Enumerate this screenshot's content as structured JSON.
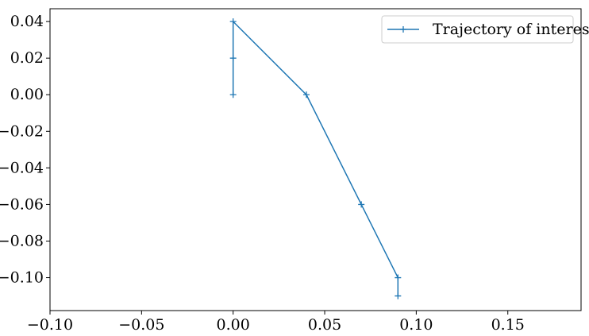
{
  "chart_data": {
    "type": "line",
    "title": "",
    "xlabel": "",
    "ylabel": "",
    "xlim": [
      -0.1,
      0.19
    ],
    "ylim": [
      -0.118,
      0.047
    ],
    "x_ticks": [
      -0.1,
      -0.05,
      0.0,
      0.05,
      0.1,
      0.15
    ],
    "x_tick_labels": [
      "−0.10",
      "−0.05",
      "0.00",
      "0.05",
      "0.10",
      "0.15"
    ],
    "y_ticks": [
      0.04,
      0.02,
      0.0,
      -0.02,
      -0.04,
      -0.06,
      -0.08,
      -0.1
    ],
    "y_tick_labels": [
      "0.04",
      "0.02",
      "0.00",
      "−0.02",
      "−0.04",
      "−0.06",
      "−0.08",
      "−0.10"
    ],
    "grid": false,
    "legend_position": "top-right",
    "series": [
      {
        "name": "Trajectory of interest",
        "color": "#1f77b4",
        "marker": "plus",
        "points": [
          {
            "x": 0.0,
            "y": 0.0
          },
          {
            "x": 0.0,
            "y": 0.02
          },
          {
            "x": 0.0,
            "y": 0.04
          },
          {
            "x": 0.04,
            "y": 0.0
          },
          {
            "x": 0.07,
            "y": -0.06
          },
          {
            "x": 0.09,
            "y": -0.1
          },
          {
            "x": 0.09,
            "y": -0.11
          }
        ]
      }
    ]
  }
}
